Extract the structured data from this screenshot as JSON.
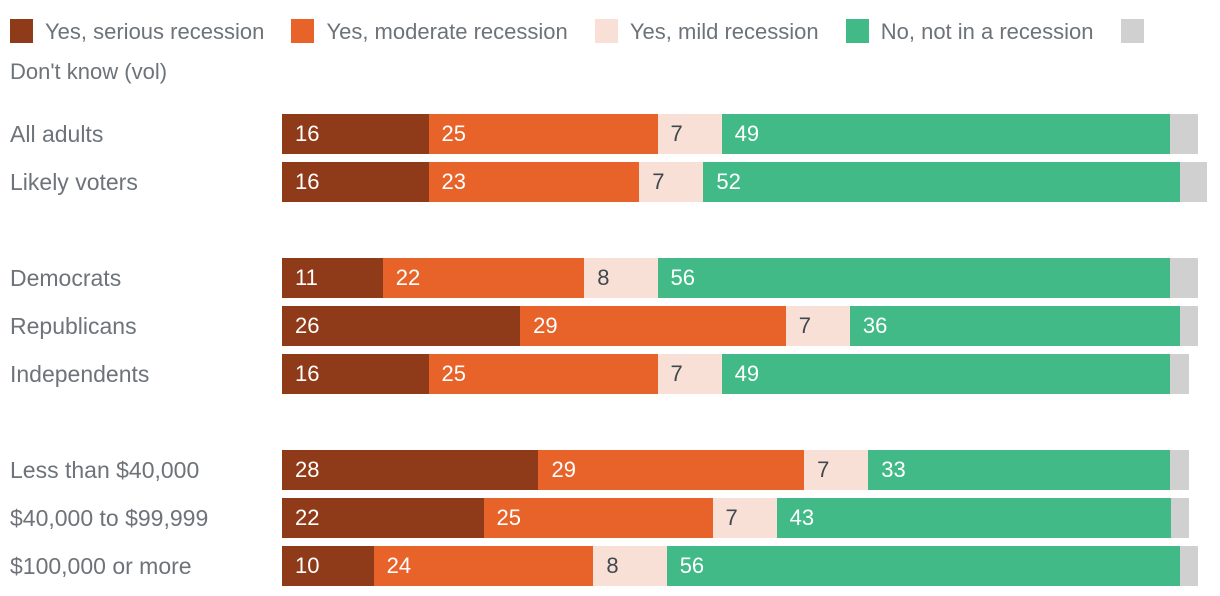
{
  "legend": {
    "items": [
      {
        "label": "Yes, serious recession",
        "color": "#8f3a18"
      },
      {
        "label": "Yes, moderate recession",
        "color": "#e8632a"
      },
      {
        "label": "Yes, mild recession",
        "color": "#f9e0d7"
      },
      {
        "label": "No, not in a recession",
        "color": "#41ba88"
      },
      {
        "label": "Don't know (vol)",
        "color": "#d0d0d0"
      }
    ]
  },
  "chart_data": {
    "type": "bar",
    "orientation": "horizontal",
    "stacked": true,
    "unit": "percent",
    "xlim": [
      0,
      100
    ],
    "legend_position": "top",
    "series": [
      {
        "key": "serious-recession",
        "name": "Yes, serious recession",
        "color": "#8f3a18",
        "show_value_label": true
      },
      {
        "key": "moderate-recession",
        "name": "Yes, moderate recession",
        "color": "#e8632a",
        "show_value_label": true
      },
      {
        "key": "mild-recession",
        "name": "Yes, mild recession",
        "color": "#f9e0d7",
        "show_value_label": true
      },
      {
        "key": "no-recession",
        "name": "No, not in a recession",
        "color": "#41ba88",
        "show_value_label": true
      },
      {
        "key": "dont-know",
        "name": "Don't know (vol)",
        "color": "#d0d0d0",
        "show_value_label": false
      }
    ],
    "groups": [
      {
        "rows": [
          {
            "label": "All adults",
            "values": [
              16,
              25,
              7,
              49,
              3
            ]
          },
          {
            "label": "Likely voters",
            "values": [
              16,
              23,
              7,
              52,
              3
            ]
          }
        ]
      },
      {
        "rows": [
          {
            "label": "Democrats",
            "values": [
              11,
              22,
              8,
              56,
              3
            ]
          },
          {
            "label": "Republicans",
            "values": [
              26,
              29,
              7,
              36,
              2
            ]
          },
          {
            "label": "Independents",
            "values": [
              16,
              25,
              7,
              49,
              2
            ]
          }
        ]
      },
      {
        "rows": [
          {
            "label": "Less than $40,000",
            "values": [
              28,
              29,
              7,
              33,
              2
            ]
          },
          {
            "label": "$40,000 to $99,999",
            "values": [
              22,
              25,
              7,
              43,
              2
            ]
          },
          {
            "label": "$100,000 or more",
            "values": [
              10,
              24,
              8,
              56,
              2
            ]
          }
        ]
      }
    ],
    "colors": {
      "label_text": "#6d7378",
      "value_text_light": "#ffffff",
      "value_text_dark": "#41484d"
    }
  }
}
